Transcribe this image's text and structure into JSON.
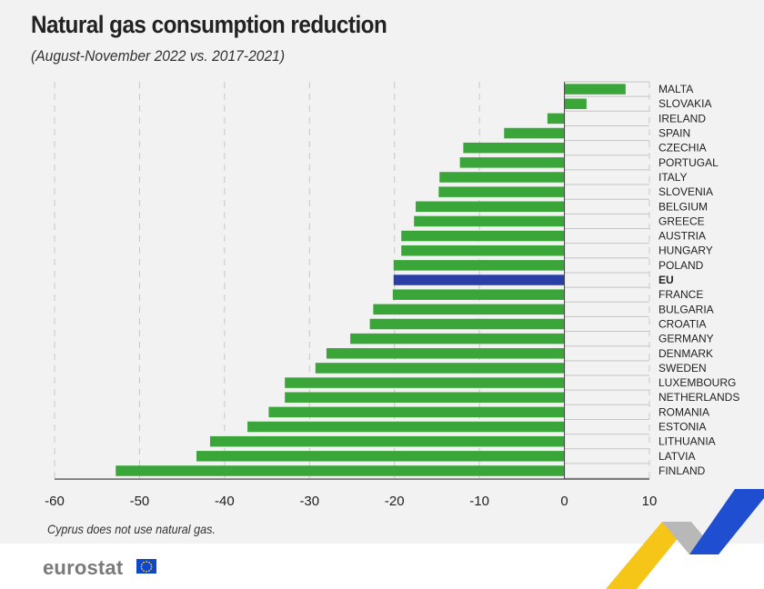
{
  "title": "Natural gas consumption reduction",
  "subtitle": "(August-November 2022 vs. 2017-2021)",
  "note": "Cyprus does not use natural gas.",
  "logo": "eurostat",
  "colors": {
    "bar": "#3aa63a",
    "highlight": "#2a3fa6",
    "grid": "#c8c8c8",
    "separator": "#c4c4c4"
  },
  "chart_data": {
    "type": "bar",
    "orientation": "horizontal",
    "highlight": "EU",
    "xlim": [
      -60,
      10
    ],
    "xticks": [
      -60,
      -50,
      -40,
      -30,
      -20,
      -10,
      0,
      10
    ],
    "grid": true,
    "categories": [
      "MALTA",
      "SLOVAKIA",
      "IRELAND",
      "SPAIN",
      "CZECHIA",
      "PORTUGAL",
      "ITALY",
      "SLOVENIA",
      "BELGIUM",
      "GREECE",
      "AUSTRIA",
      "HUNGARY",
      "POLAND",
      "EU",
      "FRANCE",
      "BULGARIA",
      "CROATIA",
      "GERMANY",
      "DENMARK",
      "SWEDEN",
      "LUXEMBOURG",
      "NETHERLANDS",
      "ROMANIA",
      "ESTONIA",
      "LITHUANIA",
      "LATVIA",
      "FINLAND"
    ],
    "values": [
      7.2,
      2.6,
      -2.0,
      -7.1,
      -11.9,
      -12.3,
      -14.7,
      -14.8,
      -17.5,
      -17.7,
      -19.2,
      -19.2,
      -20.1,
      -20.1,
      -20.2,
      -22.5,
      -22.9,
      -25.2,
      -28.0,
      -29.3,
      -32.9,
      -32.9,
      -34.8,
      -37.3,
      -41.7,
      -43.3,
      -52.8
    ]
  }
}
